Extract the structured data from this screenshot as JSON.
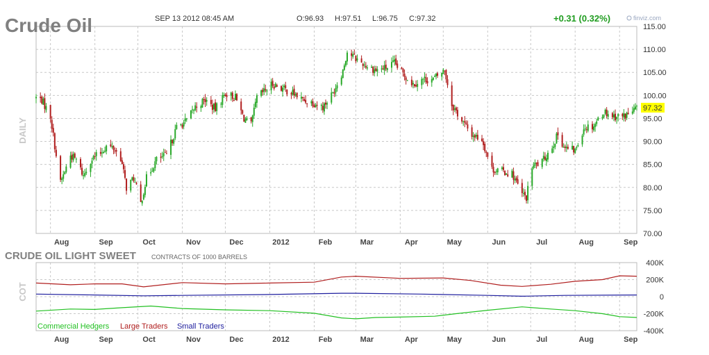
{
  "header": {
    "title": "Crude Oil",
    "datetime": "SEP 13 2012 08:45 AM",
    "open": "O:96.93",
    "high": "H:97.51",
    "low": "L:96.75",
    "close": "C:97.32",
    "change": "+0.31 (0.32%)",
    "brand": "finviz.com"
  },
  "colors": {
    "up": "#28a828",
    "down": "#b01e1e",
    "commercial": "#22c022",
    "large": "#b01e1e",
    "small": "#1e1e9e",
    "change": "#1f9c1f",
    "last_price_bg": "#ffff00"
  },
  "chart_data": [
    {
      "type": "candlestick",
      "ylabel": "DAILY",
      "ylim": [
        70,
        115
      ],
      "yticks": [
        "115.00",
        "110.00",
        "105.00",
        "100.00",
        "95.00",
        "90.00",
        "85.00",
        "80.00",
        "75.00",
        "70.00"
      ],
      "last_price": "97.32",
      "xlim": [
        "2011-07-22",
        "2012-09-13"
      ],
      "x_months": [
        {
          "label": "Aug",
          "date": "2011-08-01"
        },
        {
          "label": "Sep",
          "date": "2011-09-01"
        },
        {
          "label": "Oct",
          "date": "2011-10-01"
        },
        {
          "label": "Nov",
          "date": "2011-11-01"
        },
        {
          "label": "Dec",
          "date": "2011-12-01"
        },
        {
          "label": "2012",
          "date": "2012-01-01"
        },
        {
          "label": "Feb",
          "date": "2012-02-01"
        },
        {
          "label": "Mar",
          "date": "2012-03-01"
        },
        {
          "label": "Apr",
          "date": "2012-04-01"
        },
        {
          "label": "May",
          "date": "2012-05-01"
        },
        {
          "label": "Jun",
          "date": "2012-06-01"
        },
        {
          "label": "Jul",
          "date": "2012-07-01"
        },
        {
          "label": "Aug",
          "date": "2012-08-01"
        },
        {
          "label": "Sep",
          "date": "2012-09-01"
        }
      ],
      "close_path": [
        [
          "2011-07-22",
          99.5
        ],
        [
          "2011-07-26",
          99.0
        ],
        [
          "2011-08-01",
          95.5
        ],
        [
          "2011-08-05",
          87.0
        ],
        [
          "2011-08-08",
          81.0
        ],
        [
          "2011-08-11",
          83.5
        ],
        [
          "2011-08-15",
          87.0
        ],
        [
          "2011-08-19",
          86.0
        ],
        [
          "2011-08-24",
          82.5
        ],
        [
          "2011-08-29",
          86.0
        ],
        [
          "2011-09-05",
          87.5
        ],
        [
          "2011-09-09",
          89.0
        ],
        [
          "2011-09-14",
          88.5
        ],
        [
          "2011-09-19",
          86.5
        ],
        [
          "2011-09-23",
          80.0
        ],
        [
          "2011-09-28",
          82.0
        ],
        [
          "2011-10-03",
          76.5
        ],
        [
          "2011-10-07",
          82.0
        ],
        [
          "2011-10-14",
          86.0
        ],
        [
          "2011-10-21",
          87.0
        ],
        [
          "2011-10-28",
          93.0
        ],
        [
          "2011-11-04",
          94.5
        ],
        [
          "2011-11-10",
          97.5
        ],
        [
          "2011-11-17",
          99.0
        ],
        [
          "2011-11-24",
          97.0
        ],
        [
          "2011-12-01",
          100.5
        ],
        [
          "2011-12-08",
          99.5
        ],
        [
          "2011-12-14",
          95.0
        ],
        [
          "2011-12-19",
          93.5
        ],
        [
          "2011-12-23",
          99.5
        ],
        [
          "2012-01-03",
          102.5
        ],
        [
          "2012-01-10",
          101.5
        ],
        [
          "2012-01-17",
          100.5
        ],
        [
          "2012-01-24",
          99.0
        ],
        [
          "2012-01-31",
          98.5
        ],
        [
          "2012-02-07",
          97.5
        ],
        [
          "2012-02-14",
          100.5
        ],
        [
          "2012-02-21",
          105.5
        ],
        [
          "2012-02-24",
          109.5
        ],
        [
          "2012-03-01",
          108.0
        ],
        [
          "2012-03-08",
          106.5
        ],
        [
          "2012-03-15",
          105.5
        ],
        [
          "2012-03-22",
          106.0
        ],
        [
          "2012-03-28",
          107.0
        ],
        [
          "2012-04-02",
          105.0
        ],
        [
          "2012-04-10",
          102.5
        ],
        [
          "2012-04-17",
          103.5
        ],
        [
          "2012-04-24",
          103.5
        ],
        [
          "2012-04-30",
          105.0
        ],
        [
          "2012-05-02",
          105.5
        ],
        [
          "2012-05-07",
          98.0
        ],
        [
          "2012-05-14",
          94.5
        ],
        [
          "2012-05-21",
          91.5
        ],
        [
          "2012-05-28",
          90.5
        ],
        [
          "2012-06-04",
          84.0
        ],
        [
          "2012-06-11",
          83.5
        ],
        [
          "2012-06-18",
          83.0
        ],
        [
          "2012-06-25",
          78.5
        ],
        [
          "2012-06-28",
          77.8
        ],
        [
          "2012-07-02",
          84.5
        ],
        [
          "2012-07-09",
          85.5
        ],
        [
          "2012-07-16",
          89.0
        ],
        [
          "2012-07-20",
          91.5
        ],
        [
          "2012-07-25",
          88.5
        ],
        [
          "2012-08-01",
          88.0
        ],
        [
          "2012-08-07",
          93.0
        ],
        [
          "2012-08-14",
          93.5
        ],
        [
          "2012-08-21",
          96.5
        ],
        [
          "2012-08-28",
          95.5
        ],
        [
          "2012-09-04",
          95.5
        ],
        [
          "2012-09-10",
          96.5
        ],
        [
          "2012-09-13",
          97.32
        ]
      ]
    },
    {
      "type": "line",
      "title": "CRUDE OIL LIGHT SWEET",
      "subtitle": "CONTRACTS OF 1000 BARRELS",
      "ylabel": "COT",
      "ylim": [
        -400,
        400
      ],
      "yticks": [
        "400K",
        "200K",
        "0",
        "-200K",
        "-400K"
      ],
      "ytick_values": [
        400,
        200,
        0,
        -200,
        -400
      ],
      "units": "thousand contracts",
      "legend": "bottom-left",
      "series": [
        {
          "name": "Commercial Hedgers",
          "points": [
            [
              "2011-07-22",
              -170
            ],
            [
              "2011-08-15",
              -145
            ],
            [
              "2011-09-01",
              -150
            ],
            [
              "2011-09-20",
              -130
            ],
            [
              "2011-10-10",
              -110
            ],
            [
              "2011-11-01",
              -140
            ],
            [
              "2011-12-01",
              -155
            ],
            [
              "2012-01-01",
              -165
            ],
            [
              "2012-02-01",
              -195
            ],
            [
              "2012-02-20",
              -250
            ],
            [
              "2012-03-01",
              -260
            ],
            [
              "2012-03-15",
              -245
            ],
            [
              "2012-04-01",
              -240
            ],
            [
              "2012-04-25",
              -230
            ],
            [
              "2012-05-10",
              -200
            ],
            [
              "2012-06-01",
              -160
            ],
            [
              "2012-06-25",
              -120
            ],
            [
              "2012-07-15",
              -145
            ],
            [
              "2012-08-01",
              -165
            ],
            [
              "2012-08-20",
              -200
            ],
            [
              "2012-09-01",
              -235
            ],
            [
              "2012-09-13",
              -245
            ]
          ]
        },
        {
          "name": "Large Traders",
          "points": [
            [
              "2011-07-22",
              160
            ],
            [
              "2011-08-15",
              140
            ],
            [
              "2011-09-01",
              150
            ],
            [
              "2011-09-20",
              150
            ],
            [
              "2011-10-05",
              115
            ],
            [
              "2011-11-01",
              165
            ],
            [
              "2011-12-01",
              150
            ],
            [
              "2012-01-01",
              160
            ],
            [
              "2012-02-01",
              170
            ],
            [
              "2012-02-20",
              230
            ],
            [
              "2012-03-01",
              240
            ],
            [
              "2012-04-01",
              215
            ],
            [
              "2012-05-01",
              220
            ],
            [
              "2012-05-20",
              190
            ],
            [
              "2012-06-10",
              135
            ],
            [
              "2012-06-25",
              120
            ],
            [
              "2012-07-15",
              145
            ],
            [
              "2012-08-01",
              180
            ],
            [
              "2012-08-20",
              200
            ],
            [
              "2012-09-01",
              245
            ],
            [
              "2012-09-13",
              240
            ]
          ]
        },
        {
          "name": "Small Traders",
          "points": [
            [
              "2011-07-22",
              30
            ],
            [
              "2011-09-01",
              20
            ],
            [
              "2011-10-05",
              10
            ],
            [
              "2011-11-01",
              15
            ],
            [
              "2012-01-01",
              25
            ],
            [
              "2012-02-20",
              40
            ],
            [
              "2012-03-01",
              40
            ],
            [
              "2012-04-15",
              30
            ],
            [
              "2012-06-01",
              15
            ],
            [
              "2012-06-25",
              5
            ],
            [
              "2012-07-25",
              15
            ],
            [
              "2012-09-13",
              20
            ]
          ]
        }
      ]
    }
  ]
}
